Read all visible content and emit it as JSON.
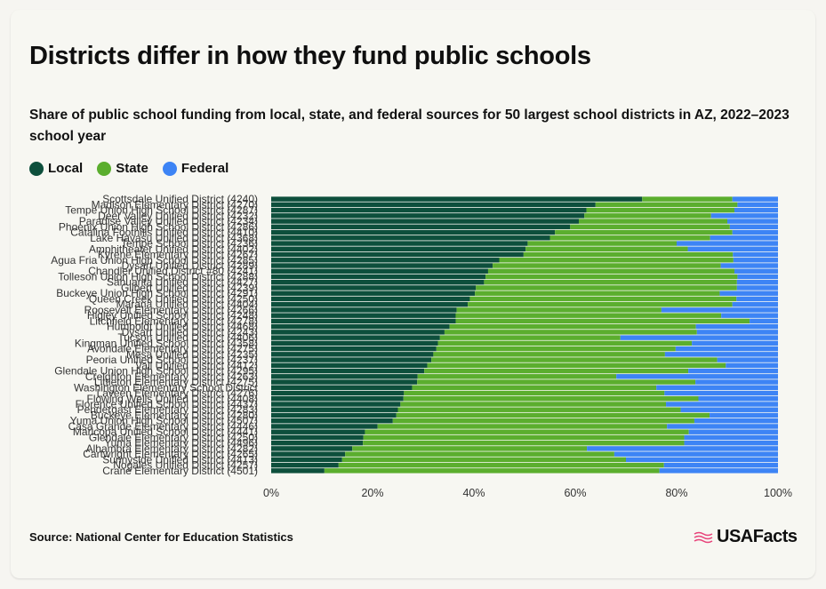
{
  "title": "Districts differ in how they fund public schools",
  "subtitle": "Share of public school funding from local, state, and federal sources for 50 largest school districts in AZ, 2022–2023 school year",
  "legend": {
    "local": "Local",
    "state": "State",
    "federal": "Federal"
  },
  "colors": {
    "local": "#0d4f3c",
    "state": "#5bae2e",
    "federal": "#3d84f5"
  },
  "source": "Source: National Center for Education Statistics",
  "brand": "USAFacts",
  "brand_icon": "flag-icon",
  "chart_data": {
    "type": "bar",
    "orientation": "horizontal",
    "stacked": true,
    "normalized": true,
    "xlim": [
      0,
      100
    ],
    "xticks": [
      "0%",
      "20%",
      "40%",
      "60%",
      "80%",
      "100%"
    ],
    "categories": [
      "Scottsdale Unified District (4240)",
      "Madison Elementary District (4270)",
      "Tempe Union High School District (4287)",
      "Deer Valley Unified District (4232)",
      "Paradise Valley Unified District (4234)",
      "Phoenix Union High School District (4286)",
      "Catalina Foothills Unified District (4410)",
      "Lake Havasu Unified District (4368)",
      "Tempe School District (4236)",
      "Amphitheater Unified District (4402)",
      "Kyrene Elementary District (4267)",
      "Agua Fria Union High School District (4285)",
      "Dysart Unified District (4289)",
      "Chandler Unified District #80 (4241)",
      "Tolleson Union High School District (4288)",
      "Sahuarita Unified District (4427)",
      "Gilbert Unified District (4239)",
      "Buckeye Union High School District (4291)",
      "Queen Creek Unified District (4250)",
      "Marana Unified District (4404)",
      "Roosevelt Elementary District (4266)",
      "Higley Unified School District (4248)",
      "Litchfield Elementary District (4278)",
      "Humboldt Unified District (4468)",
      "Dysart Unified District (4243)",
      "Tucson Unified District (4406)",
      "Kingman Unified School District (4358)",
      "Avondale Elementary District (4275)",
      "Mesa Unified District (4235)",
      "Peoria Unified School District (4237)",
      "Vail Unified District (4412)",
      "Glendale Union High School District (4295)",
      "Creighton Elementary District (4263)",
      "Littleton Elementary District (4275)",
      "Washington Elementary School District",
      "Laveen Elementary District (4276)",
      "Flowing Wells Unified District (4408)",
      "Florence Unified School District (4437)",
      "Pendergast Elementary District (4283)",
      "Buckeye Elementary District (4280)",
      "Yuma Union High School District (4507)",
      "Casa Grande Elementary District (4446)",
      "Maricopa Unified School District (4441)",
      "Glendale Elementary District (4250)",
      "Yuma Elementary District (4496)",
      "Alhambra Elementary District (4282)",
      "Cartwright Elementary District (4265)",
      "Sunnyside Unified District (4413)",
      "Nogales Unified District (4257)",
      "Crane Elementary District (4501)"
    ],
    "series": [
      {
        "name": "Local",
        "values": [
          73.2,
          64.0,
          62.2,
          61.8,
          60.7,
          59.0,
          56.0,
          55.0,
          50.6,
          50.2,
          49.8,
          45.0,
          43.7,
          42.8,
          42.3,
          42.0,
          40.4,
          40.2,
          39.2,
          38.8,
          36.6,
          36.4,
          36.4,
          35.2,
          34.2,
          33.3,
          32.9,
          32.6,
          32.0,
          31.6,
          30.8,
          30.2,
          28.9,
          28.8,
          27.8,
          26.2,
          26.1,
          25.5,
          25.0,
          24.7,
          24.0,
          21.0,
          18.5,
          18.2,
          18.1,
          16.0,
          14.6,
          14.0,
          13.3,
          10.5
        ]
      },
      {
        "name": "State",
        "values": [
          17.8,
          28.0,
          29.2,
          25.0,
          29.3,
          31.5,
          35.0,
          31.6,
          29.4,
          32.0,
          41.3,
          46.2,
          45.0,
          48.6,
          49.7,
          49.9,
          51.5,
          48.3,
          52.6,
          52.2,
          40.4,
          52.4,
          58.0,
          48.6,
          49.8,
          35.6,
          50.1,
          47.2,
          45.7,
          56.4,
          58.9,
          52.1,
          39.2,
          54.9,
          48.2,
          51.4,
          58.2,
          52.4,
          55.8,
          61.8,
          59.5,
          57.1,
          63.9,
          63.3,
          63.4,
          46.3,
          53.1,
          56.0,
          64.2,
          66.1
        ]
      },
      {
        "name": "Federal",
        "values": [
          9.0,
          8.0,
          8.6,
          13.2,
          10.0,
          9.5,
          9.0,
          13.4,
          20.0,
          17.8,
          8.9,
          8.8,
          11.3,
          8.6,
          8.0,
          8.1,
          8.1,
          11.5,
          8.2,
          9.0,
          23.0,
          11.2,
          5.6,
          16.2,
          16.0,
          31.1,
          17.0,
          20.2,
          22.3,
          12.0,
          10.3,
          17.7,
          31.9,
          16.3,
          24.0,
          22.4,
          15.7,
          22.1,
          19.2,
          13.5,
          16.5,
          21.9,
          17.6,
          18.5,
          18.5,
          37.7,
          32.3,
          30.0,
          22.5,
          23.4
        ]
      }
    ]
  }
}
